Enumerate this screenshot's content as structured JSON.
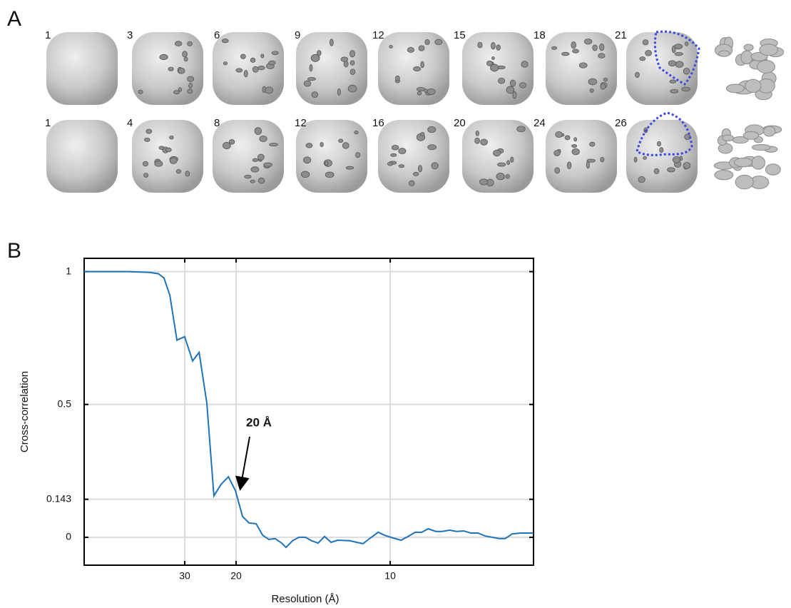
{
  "panel_labels": [
    "A",
    "B"
  ],
  "panel_a": {
    "rows": [
      [
        "1",
        "3",
        "6",
        "9",
        "12",
        "15",
        "18",
        "21"
      ],
      [
        "1",
        "4",
        "8",
        "12",
        "16",
        "20",
        "24",
        "26"
      ]
    ]
  },
  "chart_data": {
    "type": "line",
    "xlabel": "Resolution (Å)",
    "ylabel": "Cross-correlation",
    "annotation": "20 Å",
    "xlim": [
      0.0007,
      0.1465
    ],
    "ylim": [
      -0.105,
      1.05
    ],
    "xticks": [
      {
        "value": 0.03333,
        "label": "30"
      },
      {
        "value": 0.05,
        "label": "20"
      },
      {
        "value": 0.1,
        "label": "10"
      }
    ],
    "yticks": [
      1,
      0.5,
      0.143,
      0
    ],
    "grid": true,
    "x": [
      0.0007,
      0.015,
      0.022,
      0.0248,
      0.0266,
      0.0285,
      0.0308,
      0.0333,
      0.0359,
      0.038,
      0.0405,
      0.0428,
      0.0451,
      0.0475,
      0.0498,
      0.0521,
      0.0542,
      0.0565,
      0.0586,
      0.0606,
      0.0627,
      0.0648,
      0.0662,
      0.0683,
      0.0704,
      0.0725,
      0.0745,
      0.0766,
      0.0787,
      0.0808,
      0.0829,
      0.087,
      0.0891,
      0.0912,
      0.0933,
      0.0961,
      0.0981,
      0.1002,
      0.1035,
      0.1058,
      0.1081,
      0.1102,
      0.1123,
      0.1148,
      0.1169,
      0.1192,
      0.1215,
      0.1238,
      0.1262,
      0.1285,
      0.1308,
      0.1354,
      0.1373,
      0.1396,
      0.1424,
      0.1465
    ],
    "series": [
      {
        "name": "Cross-correlation",
        "color": "#1f72b8",
        "values": [
          1.0,
          1.0,
          0.997,
          0.992,
          0.976,
          0.911,
          0.742,
          0.755,
          0.664,
          0.696,
          0.505,
          0.156,
          0.199,
          0.228,
          0.175,
          0.078,
          0.054,
          0.051,
          0.008,
          -0.008,
          -0.005,
          -0.022,
          -0.038,
          -0.013,
          0,
          0,
          -0.013,
          -0.022,
          0.003,
          -0.019,
          -0.011,
          -0.013,
          -0.019,
          -0.024,
          -0.005,
          0.019,
          0.008,
          0,
          -0.011,
          0.003,
          0.019,
          0.019,
          0.032,
          0.022,
          0.022,
          0.027,
          0.022,
          0.024,
          0.016,
          0.016,
          0.005,
          -0.005,
          -0.005,
          0.013,
          0.016,
          0.016
        ]
      }
    ]
  }
}
